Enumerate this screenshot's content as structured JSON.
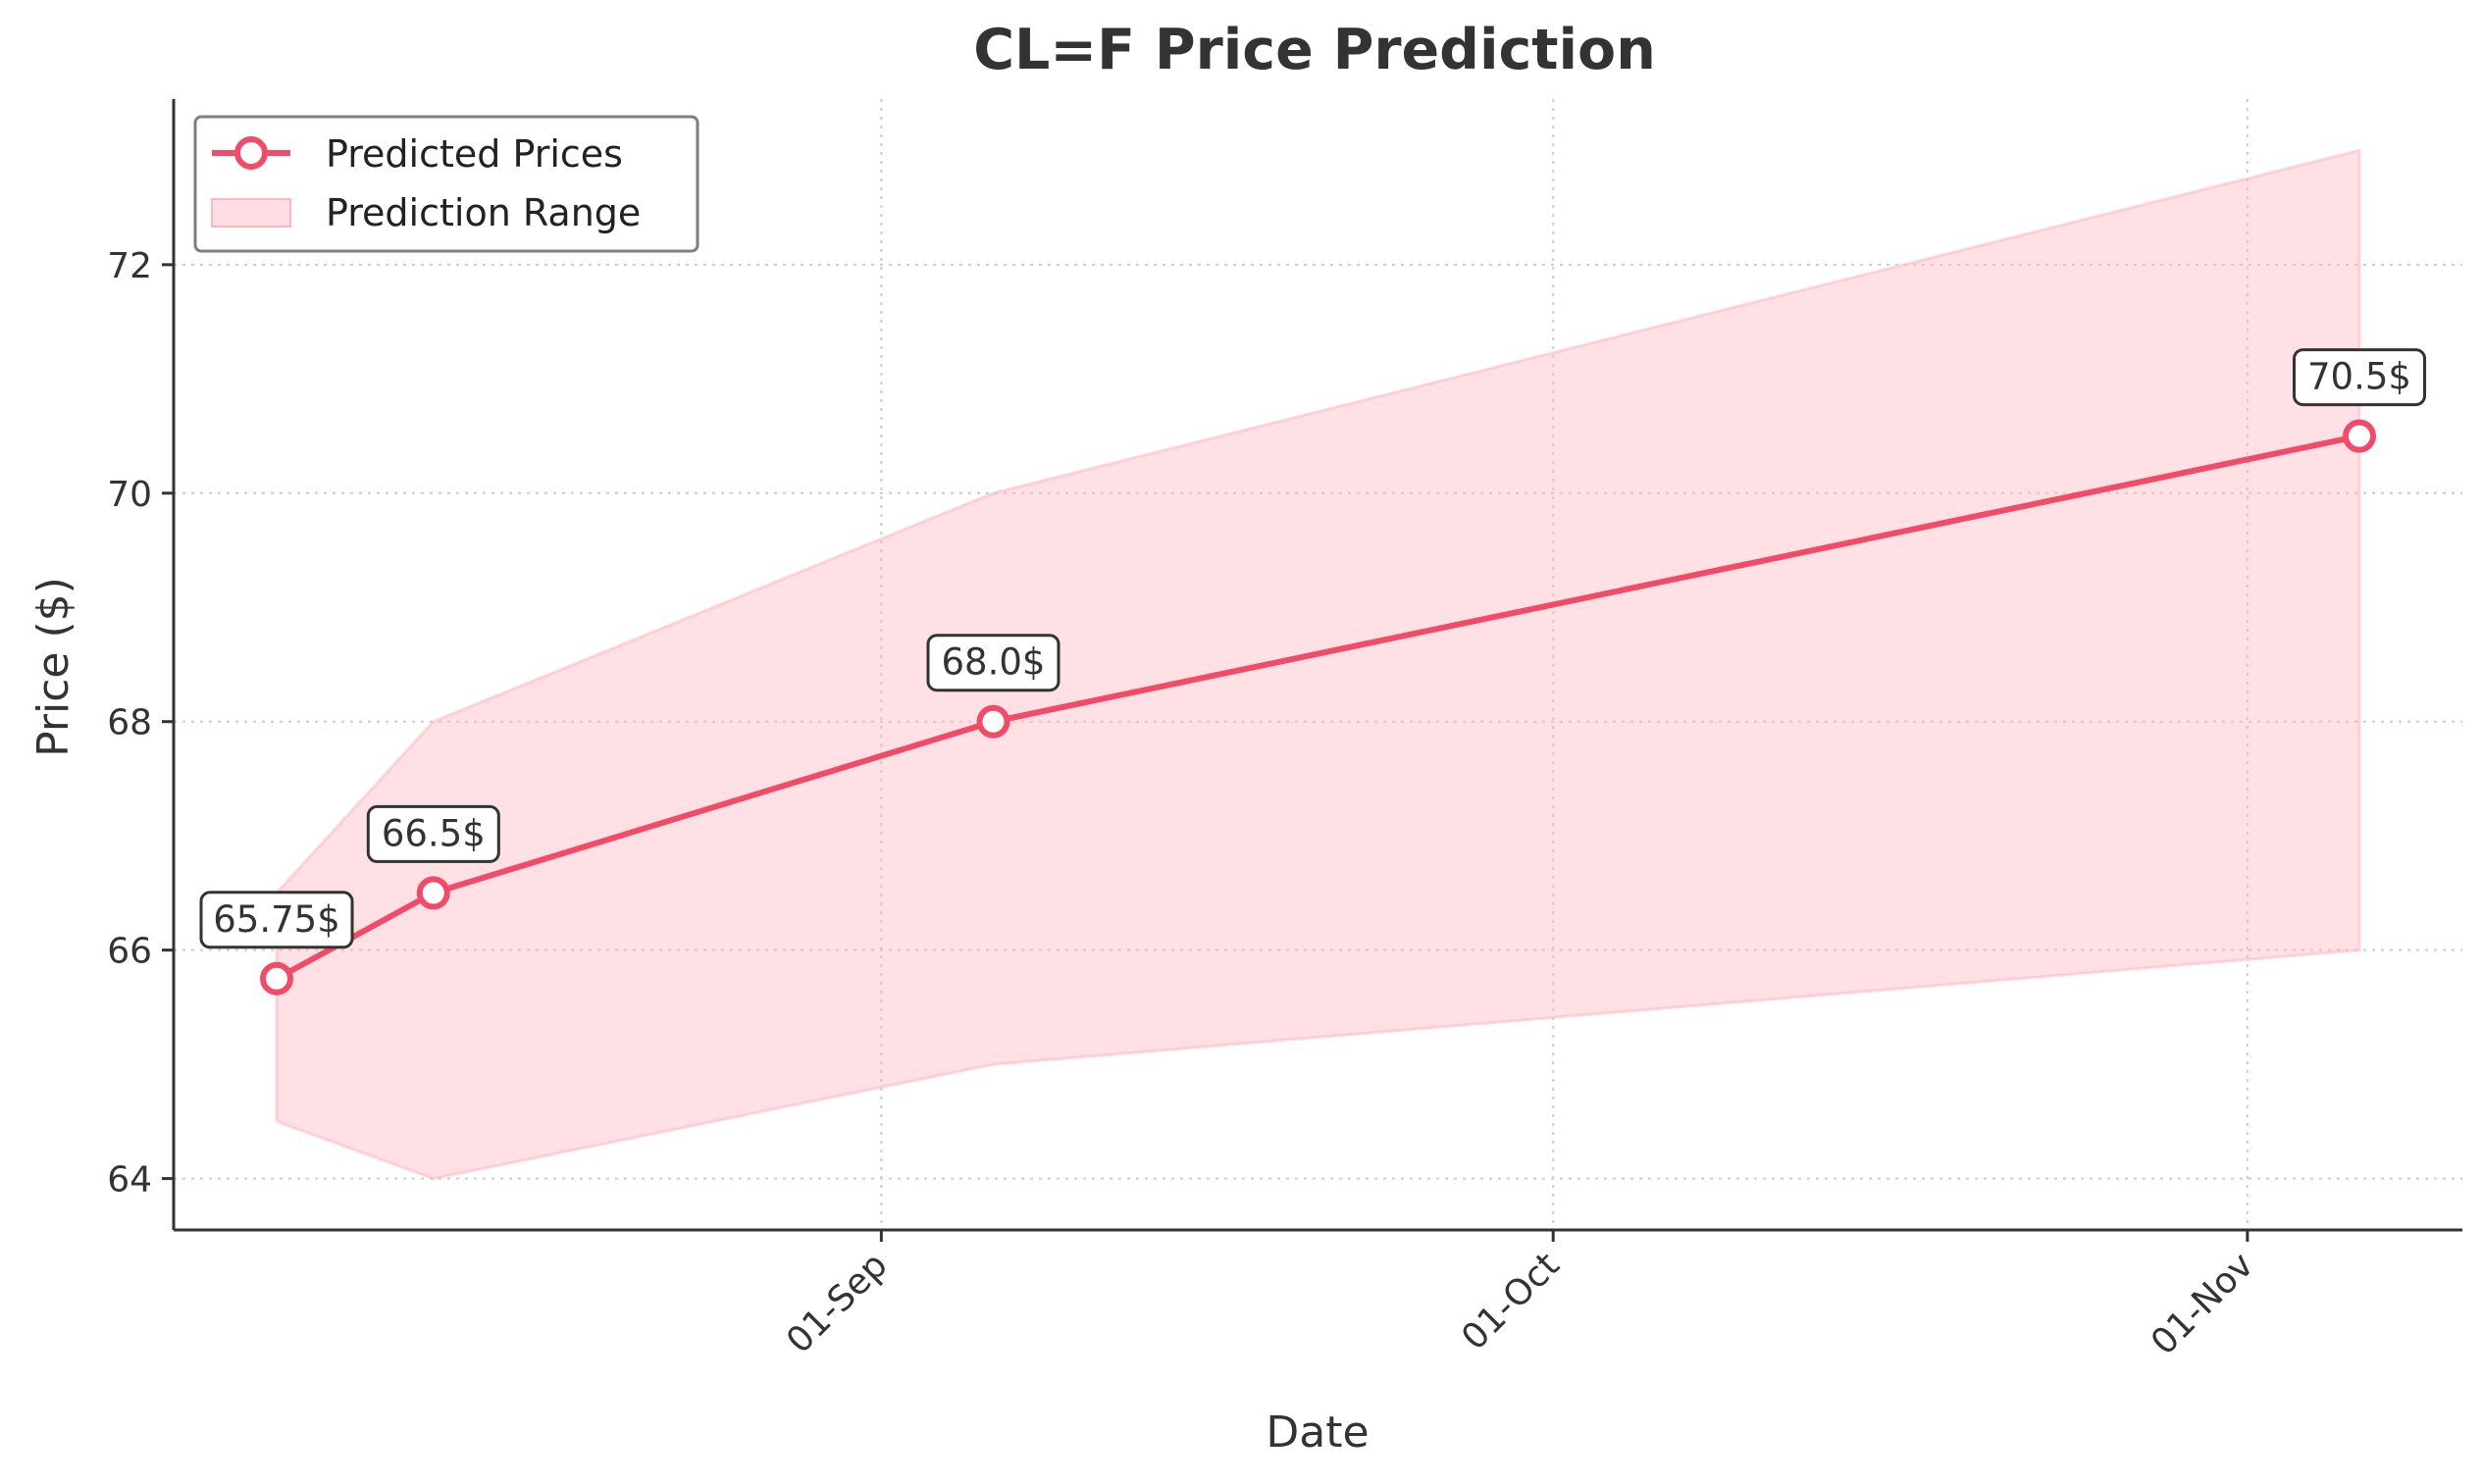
{
  "chart_data": {
    "type": "line",
    "title": "CL=F Price Prediction",
    "xlabel": "Date",
    "ylabel": "Price ($)",
    "x_ticks": [
      "01-Sep",
      "01-Oct",
      "01-Nov"
    ],
    "y_ticks": [
      64,
      66,
      68,
      70,
      72
    ],
    "ylim": [
      63.55,
      73.45
    ],
    "grid": true,
    "legend_position": "top-left",
    "series": [
      {
        "name": "Predicted Prices",
        "color": "#F24B68",
        "points": [
          {
            "date": "2024-08-05",
            "day": -27,
            "value": 65.75,
            "label": "65.75$"
          },
          {
            "date": "2024-08-12",
            "day": -20,
            "value": 66.5,
            "label": "66.5$"
          },
          {
            "date": "2024-09-06",
            "day": 5,
            "value": 68.0,
            "label": "68.0$"
          },
          {
            "date": "2024-11-06",
            "day": 66,
            "value": 70.5,
            "label": "70.5$"
          }
        ]
      }
    ],
    "range": {
      "name": "Prediction Range",
      "color": "#FFB6C1",
      "points": [
        {
          "day": -27,
          "low": 64.5,
          "high": 66.5
        },
        {
          "day": -20,
          "low": 64.0,
          "high": 68.0
        },
        {
          "day": 5,
          "low": 65.0,
          "high": 70.0
        },
        {
          "day": 66,
          "low": 66.0,
          "high": 73.0
        }
      ]
    },
    "tick_days": [
      0,
      30,
      61
    ],
    "xlim_days": [
      -31.6,
      70.6
    ]
  }
}
